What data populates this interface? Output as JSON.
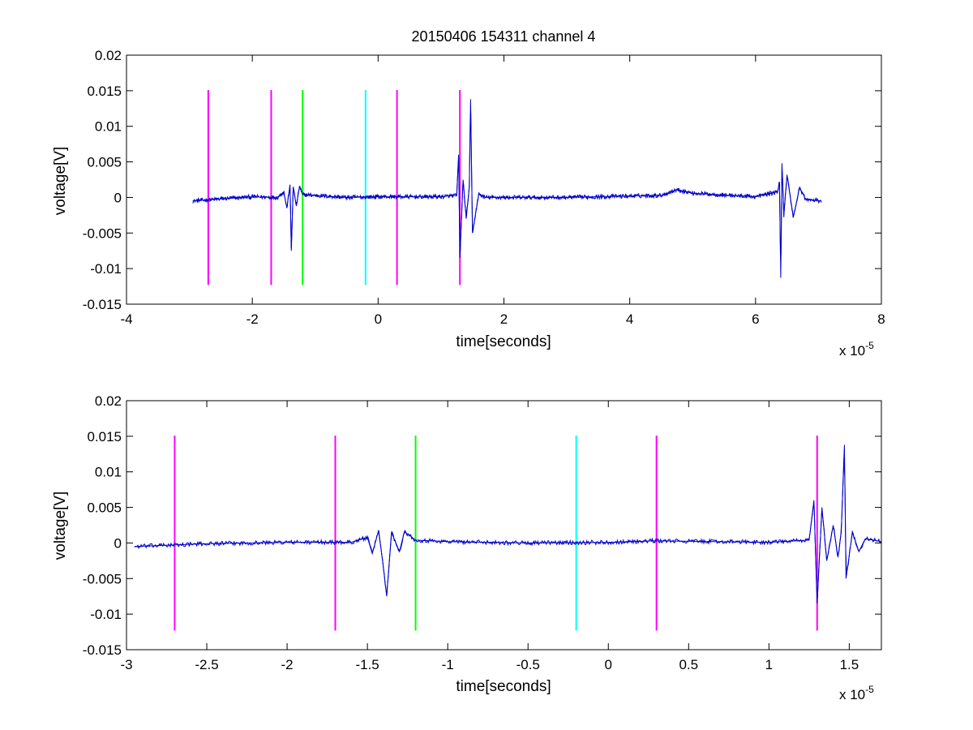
{
  "chart_data": [
    {
      "type": "line",
      "title": "20150406 154311 channel 4",
      "xlabel": "time[seconds]",
      "ylabel": "voltage[V]",
      "x_multiplier": "x 10",
      "x_multiplier_exp": "-5",
      "xlim": [
        -4,
        8
      ],
      "ylim": [
        -0.015,
        0.02
      ],
      "xticks": [
        -4,
        -2,
        0,
        2,
        4,
        6,
        8
      ],
      "xtick_labels": [
        "-4",
        "-2",
        "0",
        "2",
        "4",
        "6",
        "8"
      ],
      "yticks": [
        -0.015,
        -0.01,
        -0.005,
        0,
        0.005,
        0.01,
        0.015,
        0.02
      ],
      "ytick_labels": [
        "-0.015",
        "-0.01",
        "-0.005",
        "0",
        "0.005",
        "0.01",
        "0.015",
        "0.02"
      ],
      "grid": false,
      "signal": {
        "color": "#0000cc",
        "x_range": [
          -2.95,
          7.05
        ],
        "points": [
          [
            -2.95,
            -0.0005
          ],
          [
            -2.5,
            -0.0002
          ],
          [
            -2.0,
            0.0001
          ],
          [
            -1.6,
            0.0
          ],
          [
            -1.5,
            0.0008
          ],
          [
            -1.45,
            -0.0015
          ],
          [
            -1.4,
            0.0018
          ],
          [
            -1.38,
            -0.0075
          ],
          [
            -1.35,
            0.0015
          ],
          [
            -1.3,
            -0.0012
          ],
          [
            -1.25,
            0.0016
          ],
          [
            -1.2,
            0.0004
          ],
          [
            -0.5,
            0.0
          ],
          [
            0.0,
            0.0001
          ],
          [
            1.0,
            0.0001
          ],
          [
            1.25,
            0.0003
          ],
          [
            1.28,
            0.006
          ],
          [
            1.3,
            -0.0085
          ],
          [
            1.35,
            0.0025
          ],
          [
            1.4,
            -0.003
          ],
          [
            1.45,
            0.0015
          ],
          [
            1.47,
            0.0138
          ],
          [
            1.5,
            -0.005
          ],
          [
            1.6,
            0.0005
          ],
          [
            1.7,
            0.0
          ],
          [
            3.0,
            0.0
          ],
          [
            4.5,
            0.0003
          ],
          [
            4.75,
            0.0011
          ],
          [
            5.0,
            0.0006
          ],
          [
            6.0,
            0.0001
          ],
          [
            6.35,
            0.0008
          ],
          [
            6.38,
            0.0022
          ],
          [
            6.4,
            -0.0113
          ],
          [
            6.42,
            0.0048
          ],
          [
            6.45,
            -0.0025
          ],
          [
            6.5,
            0.0032
          ],
          [
            6.6,
            -0.0028
          ],
          [
            6.7,
            0.0014
          ],
          [
            6.8,
            -0.0003
          ],
          [
            7.05,
            -0.0005
          ]
        ]
      },
      "markers": [
        {
          "x": -2.7,
          "color": "#ff00ff"
        },
        {
          "x": -1.7,
          "color": "#ff00ff"
        },
        {
          "x": -1.2,
          "color": "#00ff00"
        },
        {
          "x": -0.2,
          "color": "#00ffff"
        },
        {
          "x": 0.3,
          "color": "#ff00ff"
        },
        {
          "x": 1.3,
          "color": "#ff00ff"
        }
      ],
      "marker_y_range": [
        -0.0123,
        0.0151
      ]
    },
    {
      "type": "line",
      "title": "",
      "xlabel": "time[seconds]",
      "ylabel": "voltage[V]",
      "x_multiplier": "x 10",
      "x_multiplier_exp": "-5",
      "xlim": [
        -3.0,
        1.7
      ],
      "ylim": [
        -0.015,
        0.02
      ],
      "xticks": [
        -3,
        -2.5,
        -2,
        -1.5,
        -1,
        -0.5,
        0,
        0.5,
        1,
        1.5
      ],
      "xtick_labels": [
        "-3",
        "-2.5",
        "-2",
        "-1.5",
        "-1",
        "-0.5",
        "0",
        "0.5",
        "1",
        "1.5"
      ],
      "yticks": [
        -0.015,
        -0.01,
        -0.005,
        0,
        0.005,
        0.01,
        0.015,
        0.02
      ],
      "ytick_labels": [
        "-0.015",
        "-0.01",
        "-0.005",
        "0",
        "0.005",
        "0.01",
        "0.015",
        "0.02"
      ],
      "grid": false,
      "signal": {
        "color": "#0000cc",
        "x_range": [
          -2.95,
          1.7
        ],
        "points": [
          [
            -2.95,
            -0.0005
          ],
          [
            -2.5,
            -0.0001
          ],
          [
            -2.0,
            0.0001
          ],
          [
            -1.6,
            0.0001
          ],
          [
            -1.5,
            0.0008
          ],
          [
            -1.47,
            -0.0015
          ],
          [
            -1.43,
            0.0018
          ],
          [
            -1.4,
            -0.0035
          ],
          [
            -1.38,
            -0.0075
          ],
          [
            -1.35,
            0.0015
          ],
          [
            -1.3,
            -0.0012
          ],
          [
            -1.27,
            0.0016
          ],
          [
            -1.2,
            0.0004
          ],
          [
            -1.0,
            0.0002
          ],
          [
            -0.5,
            0.0
          ],
          [
            0.0,
            0.0001
          ],
          [
            0.3,
            0.0003
          ],
          [
            1.0,
            0.0001
          ],
          [
            1.25,
            0.0004
          ],
          [
            1.28,
            0.006
          ],
          [
            1.3,
            -0.0085
          ],
          [
            1.33,
            0.005
          ],
          [
            1.36,
            -0.0025
          ],
          [
            1.4,
            0.0025
          ],
          [
            1.43,
            -0.002
          ],
          [
            1.45,
            0.0015
          ],
          [
            1.47,
            0.0138
          ],
          [
            1.48,
            -0.005
          ],
          [
            1.52,
            0.0015
          ],
          [
            1.56,
            -0.0012
          ],
          [
            1.6,
            0.0006
          ],
          [
            1.7,
            0.0002
          ]
        ]
      },
      "markers": [
        {
          "x": -2.7,
          "color": "#ff00ff"
        },
        {
          "x": -1.7,
          "color": "#ff00ff"
        },
        {
          "x": -1.2,
          "color": "#00ff00"
        },
        {
          "x": -0.2,
          "color": "#00ffff"
        },
        {
          "x": 0.3,
          "color": "#ff00ff"
        },
        {
          "x": 1.3,
          "color": "#ff00ff"
        }
      ],
      "marker_y_range": [
        -0.0123,
        0.0151
      ]
    }
  ]
}
